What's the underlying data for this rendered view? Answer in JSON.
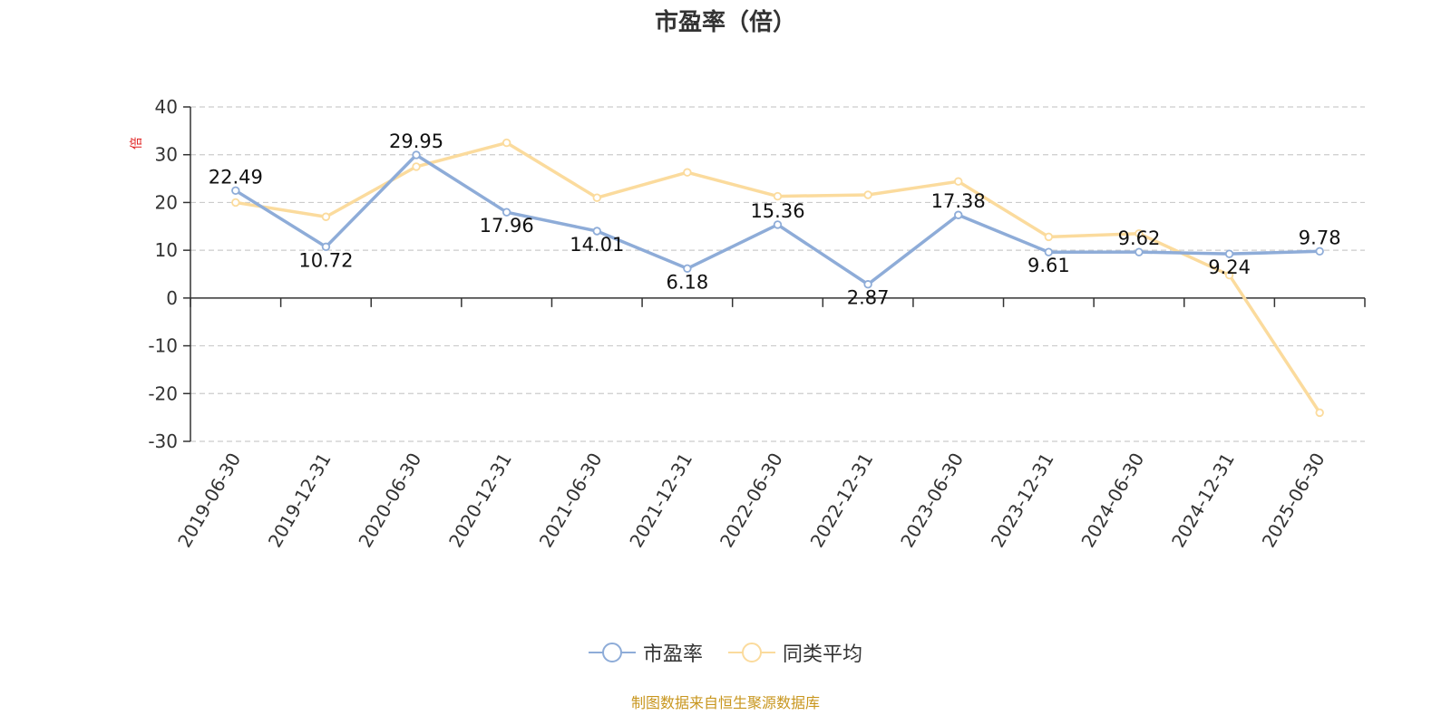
{
  "chart_data": {
    "type": "line",
    "title": "市盈率（倍）",
    "ylabel": "倍",
    "xlabel": "",
    "ylim": [
      -30,
      40
    ],
    "yticks": [
      40,
      30,
      20,
      10,
      0,
      -10,
      -20,
      -30
    ],
    "grid": true,
    "legend_position": "bottom-center",
    "categories": [
      "2019-06-30",
      "2019-12-31",
      "2020-06-30",
      "2020-12-31",
      "2021-06-30",
      "2021-12-31",
      "2022-06-30",
      "2022-12-31",
      "2023-06-30",
      "2023-12-31",
      "2024-06-30",
      "2024-12-31",
      "2025-06-30"
    ],
    "series": [
      {
        "name": "市盈率",
        "color": "#8eacd8",
        "show_labels": true,
        "values": [
          22.49,
          10.72,
          29.95,
          17.96,
          14.01,
          6.18,
          15.36,
          2.87,
          17.38,
          9.61,
          9.62,
          9.24,
          9.78
        ]
      },
      {
        "name": "同类平均",
        "color": "#fbdb9d",
        "show_labels": false,
        "values": [
          20.0,
          17.0,
          27.5,
          32.5,
          21.0,
          26.3,
          21.3,
          21.6,
          24.4,
          12.8,
          13.5,
          4.8,
          -24.0
        ]
      }
    ]
  },
  "footer": {
    "source_text": "制图数据来自恒生聚源数据库"
  }
}
